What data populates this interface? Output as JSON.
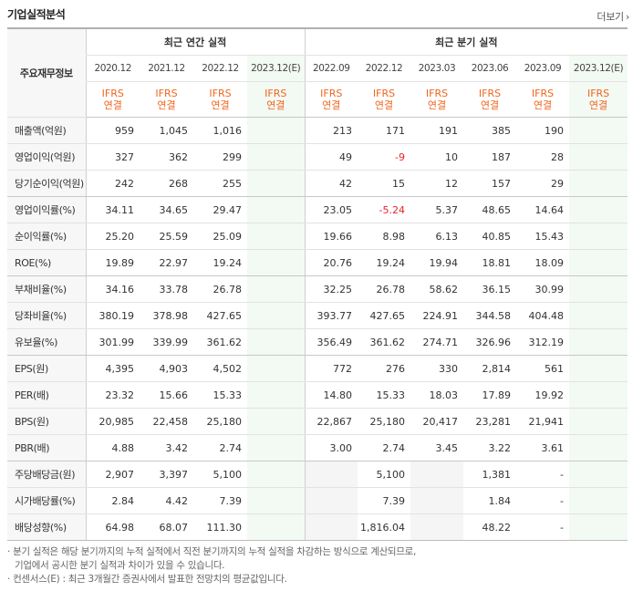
{
  "header": {
    "title": "기업실적분석",
    "more": "더보기"
  },
  "table": {
    "corner": "주요재무정보",
    "group_annual": "최근 연간 실적",
    "group_quarter": "최근 분기 실적",
    "annual_periods": [
      "2020.12",
      "2021.12",
      "2022.12",
      "2023.12(E)"
    ],
    "quarter_periods": [
      "2022.09",
      "2022.12",
      "2023.03",
      "2023.06",
      "2023.09",
      "2023.12(E)"
    ],
    "basis_line1": "IFRS",
    "basis_line2": "연결",
    "rows": [
      {
        "label": "매출액(억원)",
        "values": [
          "959",
          "1,045",
          "1,016",
          "",
          "213",
          "171",
          "191",
          "385",
          "190",
          ""
        ]
      },
      {
        "label": "영업이익(억원)",
        "values": [
          "327",
          "362",
          "299",
          "",
          "49",
          "-9",
          "10",
          "187",
          "28",
          ""
        ]
      },
      {
        "label": "당기순이익(억원)",
        "values": [
          "242",
          "268",
          "255",
          "",
          "42",
          "15",
          "12",
          "157",
          "29",
          ""
        ]
      },
      {
        "label": "영업이익률(%)",
        "values": [
          "34.11",
          "34.65",
          "29.47",
          "",
          "23.05",
          "-5.24",
          "5.37",
          "48.65",
          "14.64",
          ""
        ]
      },
      {
        "label": "순이익률(%)",
        "values": [
          "25.20",
          "25.59",
          "25.09",
          "",
          "19.66",
          "8.98",
          "6.13",
          "40.85",
          "15.43",
          ""
        ]
      },
      {
        "label": "ROE(%)",
        "values": [
          "19.89",
          "22.97",
          "19.24",
          "",
          "20.76",
          "19.24",
          "19.94",
          "18.81",
          "18.09",
          ""
        ]
      },
      {
        "label": "부채비율(%)",
        "values": [
          "34.16",
          "33.78",
          "26.78",
          "",
          "32.25",
          "26.78",
          "58.62",
          "36.15",
          "30.99",
          ""
        ]
      },
      {
        "label": "당좌비율(%)",
        "values": [
          "380.19",
          "378.98",
          "427.65",
          "",
          "393.77",
          "427.65",
          "224.91",
          "344.58",
          "404.48",
          ""
        ]
      },
      {
        "label": "유보율(%)",
        "values": [
          "301.99",
          "339.99",
          "361.62",
          "",
          "356.49",
          "361.62",
          "274.71",
          "326.96",
          "312.19",
          ""
        ]
      },
      {
        "label": "EPS(원)",
        "values": [
          "4,395",
          "4,903",
          "4,502",
          "",
          "772",
          "276",
          "330",
          "2,814",
          "561",
          ""
        ]
      },
      {
        "label": "PER(배)",
        "values": [
          "23.32",
          "15.66",
          "15.33",
          "",
          "14.80",
          "15.33",
          "18.03",
          "17.89",
          "19.92",
          ""
        ]
      },
      {
        "label": "BPS(원)",
        "values": [
          "20,985",
          "22,458",
          "25,180",
          "",
          "22,867",
          "25,180",
          "20,417",
          "23,281",
          "21,941",
          ""
        ]
      },
      {
        "label": "PBR(배)",
        "values": [
          "4.88",
          "3.42",
          "2.74",
          "",
          "3.00",
          "2.74",
          "3.45",
          "3.22",
          "3.61",
          ""
        ]
      },
      {
        "label": "주당배당금(원)",
        "values": [
          "2,907",
          "3,397",
          "5,100",
          "",
          "",
          "5,100",
          "",
          "1,381",
          "-",
          ""
        ]
      },
      {
        "label": "시가배당률(%)",
        "values": [
          "2.84",
          "4.42",
          "7.39",
          "",
          "",
          "7.39",
          "",
          "1.84",
          "-",
          ""
        ]
      },
      {
        "label": "배당성향(%)",
        "values": [
          "64.98",
          "68.07",
          "111.30",
          "",
          "",
          "1,816.04",
          "",
          "48.22",
          "-",
          ""
        ]
      }
    ]
  },
  "notes": {
    "line1": "· 분기 실적은 해당 분기까지의 누적 실적에서 직전 분기까지의 누적 실적을 차감하는 방식으로 계산되므로,",
    "line2": "기업에서 공시한 분기 실적과 차이가 있을 수 있습니다.",
    "line3": "· 컨센서스(E) : 최근 3개월간 증권사에서 발표한 전망치의 평균값입니다."
  }
}
